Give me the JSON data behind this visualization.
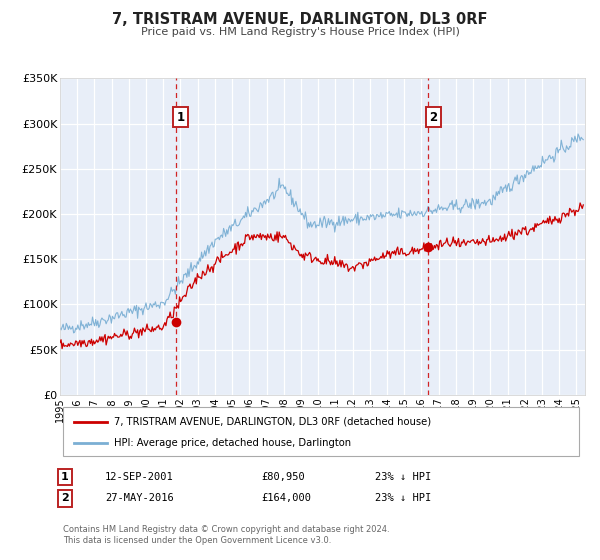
{
  "title": "7, TRISTRAM AVENUE, DARLINGTON, DL3 0RF",
  "subtitle": "Price paid vs. HM Land Registry's House Price Index (HPI)",
  "legend_line1": "7, TRISTRAM AVENUE, DARLINGTON, DL3 0RF (detached house)",
  "legend_line2": "HPI: Average price, detached house, Darlington",
  "annotation1_date": "12-SEP-2001",
  "annotation1_price": "£80,950",
  "annotation1_hpi": "23% ↓ HPI",
  "annotation1_year": 2001.71,
  "annotation1_value": 80950,
  "annotation2_date": "27-MAY-2016",
  "annotation2_price": "£164,000",
  "annotation2_hpi": "23% ↓ HPI",
  "annotation2_year": 2016.4,
  "annotation2_value": 164000,
  "red_color": "#cc0000",
  "blue_color": "#7bafd4",
  "plot_bg_color": "#e8eef8",
  "ylim": [
    0,
    350000
  ],
  "xlim_start": 1995.0,
  "xlim_end": 2025.5,
  "yticks": [
    0,
    50000,
    100000,
    150000,
    200000,
    250000,
    300000,
    350000
  ],
  "ytick_labels": [
    "£0",
    "£50K",
    "£100K",
    "£150K",
    "£200K",
    "£250K",
    "£300K",
    "£350K"
  ],
  "xticks": [
    1995,
    1996,
    1997,
    1998,
    1999,
    2000,
    2001,
    2002,
    2003,
    2004,
    2005,
    2006,
    2007,
    2008,
    2009,
    2010,
    2011,
    2012,
    2013,
    2014,
    2015,
    2016,
    2017,
    2018,
    2019,
    2020,
    2021,
    2022,
    2023,
    2024,
    2025
  ],
  "footer1": "Contains HM Land Registry data © Crown copyright and database right 2024.",
  "footer2": "This data is licensed under the Open Government Licence v3.0."
}
